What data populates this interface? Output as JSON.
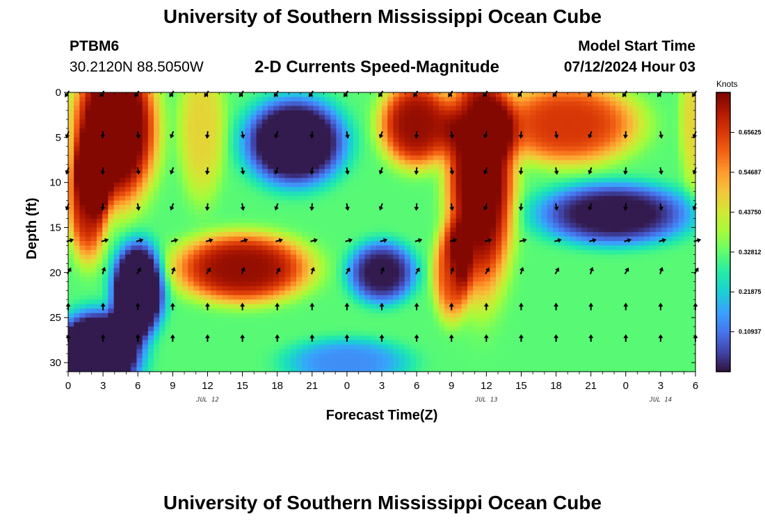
{
  "header": {
    "main_title": "University of Southern Mississippi Ocean Cube",
    "station_id": "PTBM6",
    "station_coords": "30.2120N  88.5050W",
    "plot_title": "2-D Currents Speed-Magnitude",
    "model_start_label": "Model Start Time",
    "model_start_value": "07/12/2024 Hour 03"
  },
  "footer": {
    "title": "University of Southern Mississippi Ocean Cube"
  },
  "colors": {
    "background": "#ffffff",
    "axis": "#000000",
    "arrow": "#000000",
    "colormap": [
      "#30123b",
      "#4145ab",
      "#4675ed",
      "#39a2fc",
      "#1bcfd4",
      "#24eca6",
      "#61fc6c",
      "#a4fc3b",
      "#d1e834",
      "#f3c63a",
      "#fe9b2d",
      "#f36315",
      "#d93806",
      "#b11901",
      "#7a0402"
    ]
  },
  "chart_data": {
    "type": "heatmap",
    "title": "2-D Currents Speed-Magnitude",
    "xlabel": "Forecast Time(Z)",
    "ylabel": "Depth (ft)",
    "x_ticks": [
      "0",
      "3",
      "6",
      "9",
      "12",
      "15",
      "18",
      "21",
      "0",
      "3",
      "6",
      "9",
      "12",
      "15",
      "18",
      "21",
      "0",
      "3",
      "6"
    ],
    "x_tick_hours": [
      0,
      3,
      6,
      9,
      12,
      15,
      18,
      21,
      24,
      27,
      30,
      33,
      36,
      39,
      42,
      45,
      48,
      51,
      54
    ],
    "xlim": [
      0,
      54
    ],
    "date_labels": [
      {
        "text": "JUL 12",
        "hour": 12
      },
      {
        "text": "JUL 13",
        "hour": 36
      },
      {
        "text": "JUL 14",
        "hour": 51
      }
    ],
    "y_ticks": [
      0,
      5,
      10,
      15,
      20,
      25,
      30
    ],
    "ylim": [
      0,
      31
    ],
    "y_inverted": true,
    "colorbar": {
      "unit": "Knots",
      "range": [
        0.0,
        0.766
      ],
      "tick_labels": [
        "0.65625",
        "0.54687",
        "0.43750",
        "0.32812",
        "0.21875",
        "0.10937"
      ],
      "tick_values": [
        0.65625,
        0.546875,
        0.4375,
        0.328125,
        0.21875,
        0.109375
      ]
    },
    "arrow_rows_depth_ft": [
      0,
      4.5,
      8.5,
      12.5,
      16.5,
      20,
      24,
      27.5
    ],
    "speed_blobs_knots": [
      {
        "hour": 4,
        "depth": 4,
        "w": 2.7,
        "h": 6.5,
        "v": 0.52
      },
      {
        "hour": 1.7,
        "depth": 12,
        "w": 1.3,
        "h": 5,
        "v": 0.38
      },
      {
        "hour": 6,
        "depth": 22,
        "w": 1.7,
        "h": 4,
        "v": -0.48
      },
      {
        "hour": 2.5,
        "depth": 29,
        "w": 2.8,
        "h": 3.5,
        "v": -0.5
      },
      {
        "hour": 11.5,
        "depth": 4,
        "w": 1.5,
        "h": 6,
        "v": 0.15
      },
      {
        "hour": 15,
        "depth": 19.5,
        "w": 4.4,
        "h": 2.9,
        "v": 0.42
      },
      {
        "hour": 19.5,
        "depth": 5.5,
        "w": 3.3,
        "h": 3.7,
        "v": -0.4
      },
      {
        "hour": 30,
        "depth": 3.5,
        "w": 2.4,
        "h": 3.6,
        "v": 0.42
      },
      {
        "hour": 27,
        "depth": 20,
        "w": 2.2,
        "h": 2.6,
        "v": -0.32
      },
      {
        "hour": 35.5,
        "depth": 9,
        "w": 2.2,
        "h": 10,
        "v": 0.48
      },
      {
        "hour": 33,
        "depth": 20,
        "w": 1.2,
        "h": 4,
        "v": 0.3
      },
      {
        "hour": 43,
        "depth": 3.5,
        "w": 4.6,
        "h": 3.4,
        "v": 0.34
      },
      {
        "hour": 47,
        "depth": 13.5,
        "w": 5,
        "h": 2.6,
        "v": -0.33
      },
      {
        "hour": 24,
        "depth": 30,
        "w": 4,
        "h": 2,
        "v": -0.18
      },
      {
        "hour": 54,
        "depth": 3,
        "w": 1,
        "h": 6,
        "v": 0.15
      }
    ],
    "speed_baseline_knots": 0.32
  }
}
